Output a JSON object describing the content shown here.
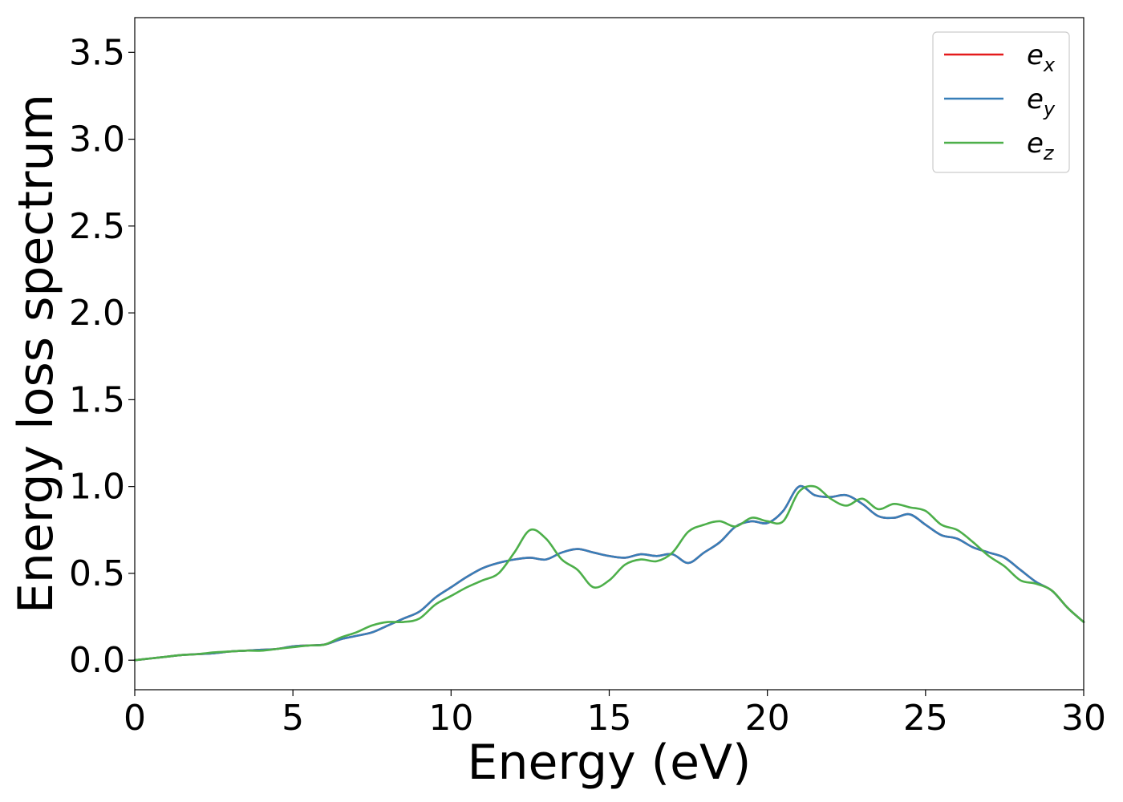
{
  "chart_data": {
    "type": "line",
    "xlabel": "Energy (eV)",
    "ylabel": "Energy loss spectrum",
    "xlim": [
      0,
      30
    ],
    "ylim": [
      -0.17,
      3.7
    ],
    "x_ticks": [
      0,
      5,
      10,
      15,
      20,
      25,
      30
    ],
    "x_tick_labels": [
      "0",
      "5",
      "10",
      "15",
      "20",
      "25",
      "30"
    ],
    "y_ticks": [
      0.0,
      0.5,
      1.0,
      1.5,
      2.0,
      2.5,
      3.0,
      3.5
    ],
    "y_tick_labels": [
      "0.0",
      "0.5",
      "1.0",
      "1.5",
      "2.0",
      "2.5",
      "3.0",
      "3.5"
    ],
    "grid": false,
    "legend_position": "top-right",
    "series": [
      {
        "name": "e_x",
        "label_base": "e",
        "label_sub": "x",
        "color": "#e41a1c",
        "x": [
          0,
          0.5,
          1,
          1.5,
          2,
          2.5,
          3,
          3.5,
          4,
          4.5,
          5,
          5.5,
          6,
          6.5,
          7,
          7.5,
          8,
          8.5,
          9,
          9.5,
          10,
          10.5,
          11,
          11.5,
          12,
          12.5,
          13,
          13.5,
          14,
          14.5,
          15,
          15.5,
          16,
          16.5,
          17,
          17.5,
          18,
          18.5,
          19,
          19.5,
          20,
          20.5,
          21,
          21.5,
          22,
          22.5,
          23,
          23.5,
          24,
          24.5,
          25,
          25.5,
          26,
          26.5,
          27,
          27.5,
          28,
          28.5,
          29,
          29.5,
          30
        ],
        "y": [
          0.0,
          0.01,
          0.02,
          0.03,
          0.035,
          0.04,
          0.05,
          0.055,
          0.06,
          0.065,
          0.08,
          0.085,
          0.09,
          0.12,
          0.14,
          0.16,
          0.2,
          0.24,
          0.28,
          0.36,
          0.42,
          0.48,
          0.53,
          0.56,
          0.58,
          0.59,
          0.58,
          0.62,
          0.64,
          0.62,
          0.6,
          0.59,
          0.61,
          0.6,
          0.61,
          0.56,
          0.62,
          0.68,
          0.77,
          0.8,
          0.79,
          0.86,
          1.0,
          0.95,
          0.94,
          0.95,
          0.9,
          0.83,
          0.82,
          0.84,
          0.78,
          0.72,
          0.7,
          0.65,
          0.62,
          0.59,
          0.52,
          0.45,
          0.4,
          0.3,
          0.22
        ]
      },
      {
        "name": "e_y",
        "label_base": "e",
        "label_sub": "y",
        "color": "#377eb8",
        "x": [
          0,
          0.5,
          1,
          1.5,
          2,
          2.5,
          3,
          3.5,
          4,
          4.5,
          5,
          5.5,
          6,
          6.5,
          7,
          7.5,
          8,
          8.5,
          9,
          9.5,
          10,
          10.5,
          11,
          11.5,
          12,
          12.5,
          13,
          13.5,
          14,
          14.5,
          15,
          15.5,
          16,
          16.5,
          17,
          17.5,
          18,
          18.5,
          19,
          19.5,
          20,
          20.5,
          21,
          21.5,
          22,
          22.5,
          23,
          23.5,
          24,
          24.5,
          25,
          25.5,
          26,
          26.5,
          27,
          27.5,
          28,
          28.5,
          29,
          29.5,
          30
        ],
        "y": [
          0.0,
          0.01,
          0.02,
          0.03,
          0.035,
          0.04,
          0.05,
          0.055,
          0.06,
          0.065,
          0.08,
          0.085,
          0.09,
          0.12,
          0.14,
          0.16,
          0.2,
          0.24,
          0.28,
          0.36,
          0.42,
          0.48,
          0.53,
          0.56,
          0.58,
          0.59,
          0.58,
          0.62,
          0.64,
          0.62,
          0.6,
          0.59,
          0.61,
          0.6,
          0.61,
          0.56,
          0.62,
          0.68,
          0.77,
          0.8,
          0.79,
          0.86,
          1.0,
          0.95,
          0.94,
          0.95,
          0.9,
          0.83,
          0.82,
          0.84,
          0.78,
          0.72,
          0.7,
          0.65,
          0.62,
          0.59,
          0.52,
          0.45,
          0.4,
          0.3,
          0.22
        ]
      },
      {
        "name": "e_z",
        "label_base": "e",
        "label_sub": "z",
        "color": "#4daf4a",
        "x": [
          0,
          0.5,
          1,
          1.5,
          2,
          2.5,
          3,
          3.5,
          4,
          4.5,
          5,
          5.5,
          6,
          6.5,
          7,
          7.5,
          8,
          8.5,
          9,
          9.5,
          10,
          10.5,
          11,
          11.5,
          12,
          12.5,
          13,
          13.5,
          14,
          14.5,
          15,
          15.5,
          16,
          16.5,
          17,
          17.5,
          18,
          18.5,
          19,
          19.5,
          20,
          20.5,
          21,
          21.5,
          22,
          22.5,
          23,
          23.5,
          24,
          24.5,
          25,
          25.5,
          26,
          26.5,
          27,
          27.5,
          28,
          28.5,
          29,
          29.5,
          30
        ],
        "y": [
          0.0,
          0.01,
          0.02,
          0.03,
          0.035,
          0.045,
          0.05,
          0.055,
          0.055,
          0.065,
          0.075,
          0.085,
          0.09,
          0.13,
          0.16,
          0.2,
          0.22,
          0.22,
          0.24,
          0.32,
          0.37,
          0.42,
          0.46,
          0.5,
          0.62,
          0.75,
          0.7,
          0.58,
          0.52,
          0.42,
          0.46,
          0.55,
          0.58,
          0.57,
          0.62,
          0.74,
          0.78,
          0.8,
          0.77,
          0.82,
          0.8,
          0.8,
          0.97,
          1.0,
          0.93,
          0.89,
          0.93,
          0.87,
          0.9,
          0.88,
          0.86,
          0.78,
          0.75,
          0.68,
          0.6,
          0.54,
          0.46,
          0.44,
          0.4,
          0.3,
          0.22
        ]
      }
    ]
  }
}
